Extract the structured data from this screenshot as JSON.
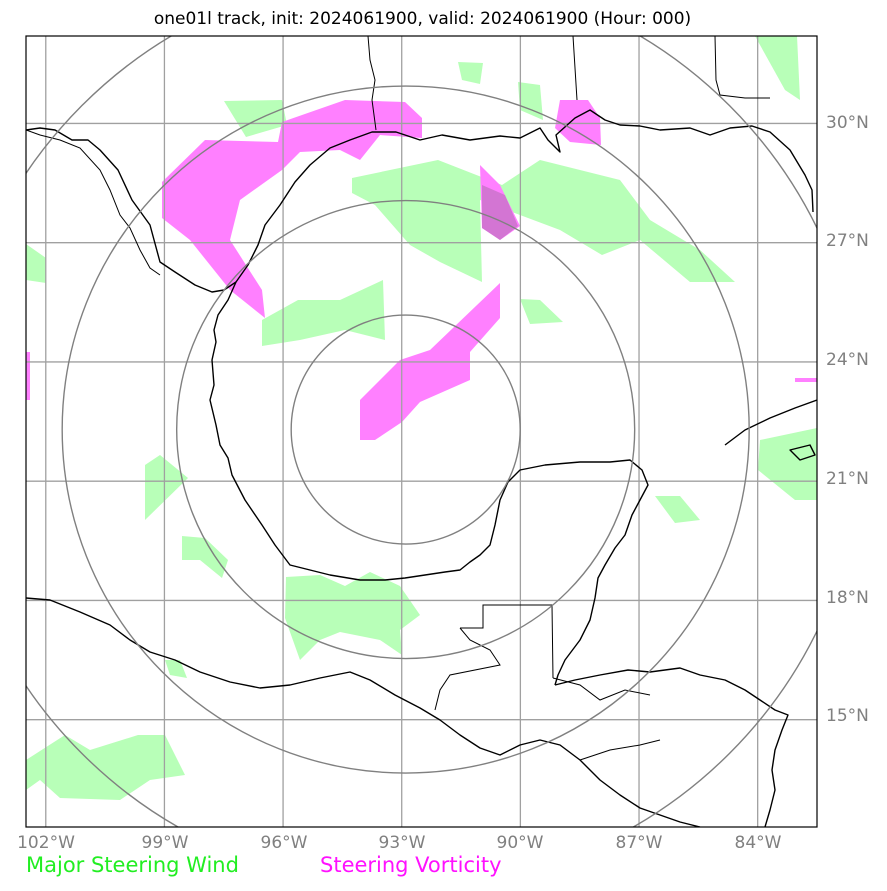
{
  "title": "one01l track, init: 2024061900, valid: 2024061900 (Hour: 000)",
  "lat_labels": [
    "30°N",
    "27°N",
    "24°N",
    "21°N",
    "18°N",
    "15°N"
  ],
  "lon_labels": [
    "102°W",
    "99°W",
    "96°W",
    "93°W",
    "90°W",
    "87°W",
    "84°W"
  ],
  "legend": {
    "wind": {
      "label": "Major Steering Wind",
      "color": "#22ee22"
    },
    "vorticity": {
      "label": "Steering Vorticity",
      "color": "#ff11ff"
    }
  },
  "colors": {
    "wind_fill": "#b8ffb8",
    "vorticity_fill": "#ff80ff",
    "grid": "#a0a0a0",
    "range_rings": "#808080",
    "coastline": "#000000"
  },
  "map": {
    "projection": "lat-lon",
    "lon_range_west": [
      102.5,
      82.5
    ],
    "lat_range_north": [
      32.2,
      12.3
    ],
    "storm_center": {
      "lat": 22.3,
      "lon": 92.9
    },
    "range_rings": 4
  }
}
